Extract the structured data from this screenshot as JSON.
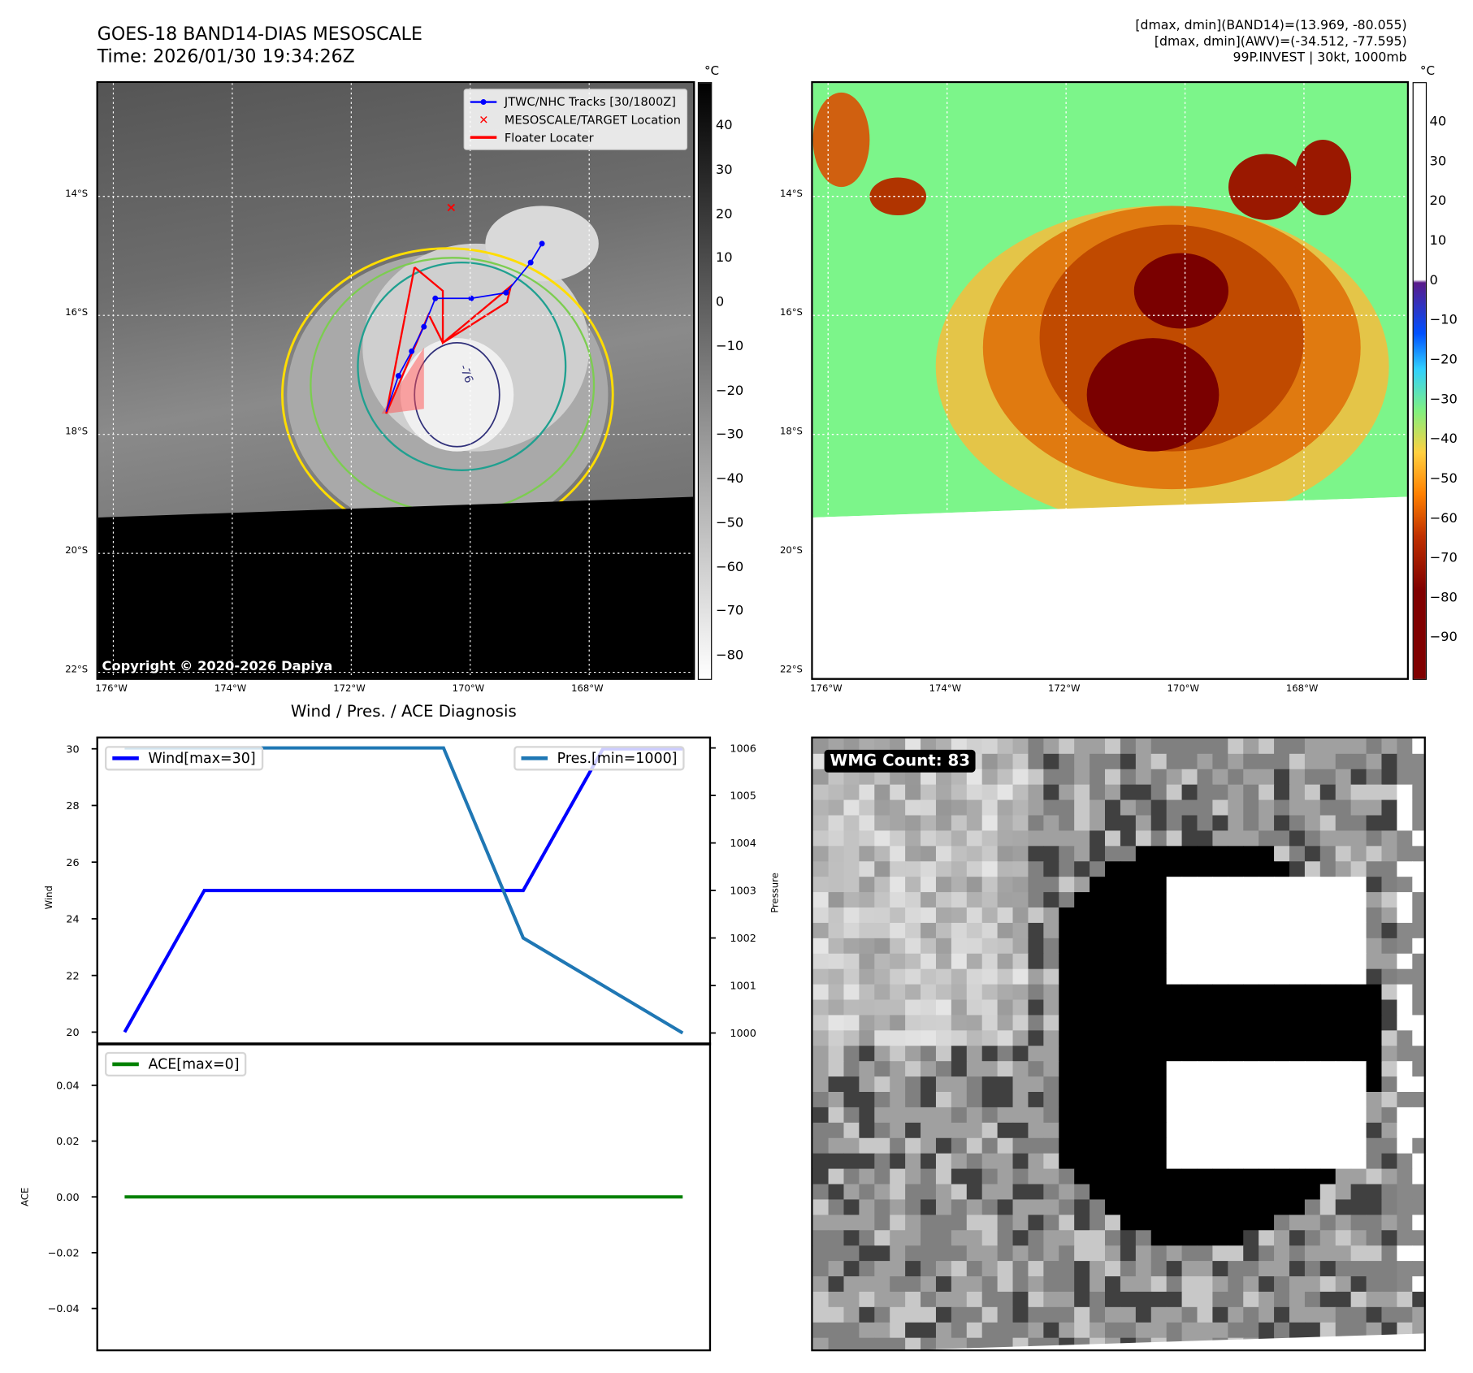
{
  "header": {
    "title_line1": "GOES-18 BAND14-DIAS MESOSCALE",
    "title_line2": "Time: 2026/01/30 19:34:26Z",
    "info_line1": "[dmax, dmin](BAND14)=(13.969, -80.055)",
    "info_line2": "[dmax, dmin](AWV)=(-34.512, -77.595)",
    "info_line3": "99P.INVEST | 30kt, 1000mb"
  },
  "map_left": {
    "unit": "°C",
    "lon_ticks": [
      "176°W",
      "174°W",
      "172°W",
      "170°W",
      "168°W"
    ],
    "lat_ticks": [
      "14°S",
      "16°S",
      "18°S",
      "20°S",
      "22°S"
    ],
    "colorbar_ticks": [
      "40",
      "30",
      "20",
      "10",
      "0",
      "−10",
      "−20",
      "−30",
      "−40",
      "−50",
      "−60",
      "−70",
      "−80"
    ],
    "legend": [
      {
        "label": "JTWC/NHC Tracks [30/1800Z]",
        "color": "#0000ff"
      },
      {
        "label": "MESOSCALE/TARGET Location",
        "color": "#ff0000"
      },
      {
        "label": "Floater Locater",
        "color": "#ff0000"
      }
    ],
    "contour_label": "-76",
    "copyright": "Copyright © 2020-2026 Dapiya"
  },
  "map_right": {
    "unit": "°C",
    "lon_ticks": [
      "176°W",
      "174°W",
      "172°W",
      "170°W",
      "168°W"
    ],
    "lat_ticks": [
      "14°S",
      "16°S",
      "18°S",
      "20°S",
      "22°S"
    ],
    "colorbar_ticks": [
      "40",
      "30",
      "20",
      "10",
      "0",
      "−10",
      "−20",
      "−30",
      "−40",
      "−50",
      "−60",
      "−70",
      "−80",
      "−90"
    ]
  },
  "wmg": {
    "label": "WMG Count: 83"
  },
  "chart_data": [
    {
      "type": "line",
      "title": "Wind / Pres. / ACE Diagnosis",
      "x": [
        0,
        1,
        2,
        3,
        4,
        5,
        6,
        7
      ],
      "ylabel": "Wind",
      "ylabel_right": "Pressure",
      "ylim": [
        19.6,
        30.4
      ],
      "ylim_right": [
        999.78,
        1006.22
      ],
      "yticks": [
        "20",
        "22",
        "24",
        "26",
        "28",
        "30"
      ],
      "yticks_right": [
        "1000",
        "1001",
        "1002",
        "1003",
        "1004",
        "1005",
        "1006"
      ],
      "series": [
        {
          "name": "Wind[max=30]",
          "axis": "left",
          "color": "#0000ff",
          "values": [
            20,
            25,
            25,
            25,
            25,
            25,
            30,
            30
          ]
        },
        {
          "name": "Pres.[min=1000]",
          "axis": "right",
          "color": "#1f77b4",
          "values": [
            1006,
            1006,
            1006,
            1006,
            1006,
            1002,
            1001,
            1000
          ]
        }
      ]
    },
    {
      "type": "line",
      "x": [
        0,
        1,
        2,
        3,
        4,
        5,
        6,
        7
      ],
      "ylabel": "ACE",
      "ylim": [
        -0.055,
        0.055
      ],
      "yticks": [
        "0.04",
        "0.02",
        "0.00",
        "−0.02",
        "−0.04"
      ],
      "series": [
        {
          "name": "ACE[max=0]",
          "color": "#008000",
          "values": [
            0,
            0,
            0,
            0,
            0,
            0,
            0,
            0
          ]
        }
      ]
    }
  ]
}
